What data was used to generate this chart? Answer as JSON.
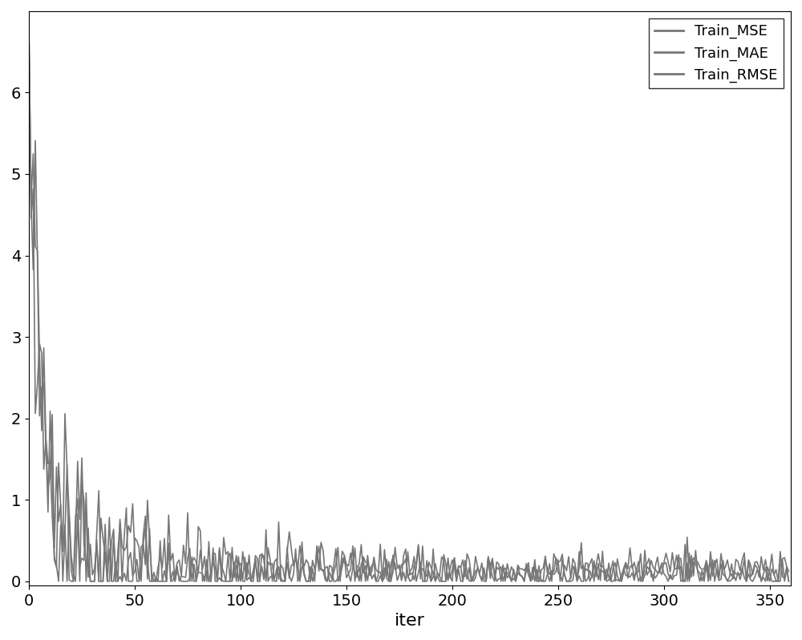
{
  "n_points": 360,
  "xlabel": "iter",
  "ylim_bottom": -0.05,
  "ylim_top": 7.0,
  "xlim_left": 0,
  "xlim_right": 360,
  "legend_labels": [
    "Train_MSE",
    "Train_MAE",
    "Train_RMSE"
  ],
  "line_color": "#777777",
  "line_width": 1.2,
  "legend_loc": "upper right",
  "background_color": "#ffffff",
  "fig_width": 10.0,
  "fig_height": 7.98,
  "dpi": 100,
  "tick_fontsize": 14,
  "label_fontsize": 16,
  "legend_fontsize": 13
}
